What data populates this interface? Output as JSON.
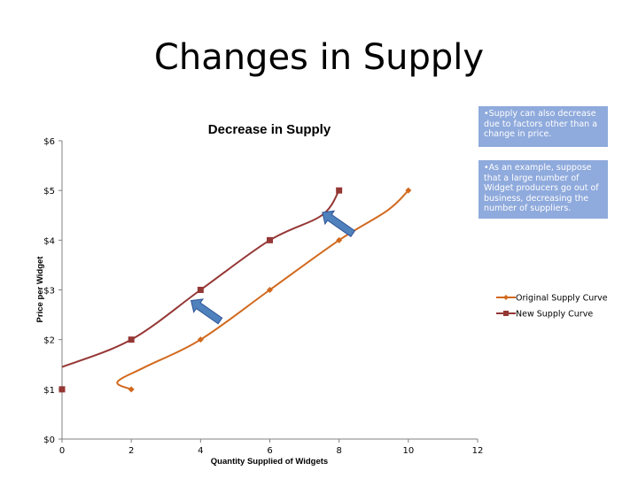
{
  "slide": {
    "title": "Changes in Supply",
    "notes": [
      "•Supply can also decrease due to factors other than a change in price.",
      "•As an example, suppose that a large number of Widget producers go out of business, decreasing the number of suppliers."
    ]
  },
  "colors": {
    "original": "#d2691e",
    "new": "#953735",
    "arrow": "#4f81bd",
    "note_bg": "#8faadc"
  },
  "chart_data": {
    "type": "line",
    "title": "Decrease in Supply",
    "xlabel": "Quantity Supplied of Widgets",
    "ylabel": "Price per Widget",
    "xlim": [
      0,
      12
    ],
    "ylim": [
      0,
      6
    ],
    "x_ticks": [
      "0",
      "2",
      "4",
      "6",
      "8",
      "10",
      "12"
    ],
    "y_ticks": [
      "$0",
      "$1",
      "$2",
      "$3",
      "$4",
      "$5",
      "$6"
    ],
    "legend_position": "right",
    "grid": false,
    "series": [
      {
        "name": "Original Supply Curve",
        "marker": "diamond",
        "points": [
          [
            2,
            1
          ],
          [
            4,
            2
          ],
          [
            6,
            3
          ],
          [
            8,
            4
          ],
          [
            10,
            5
          ]
        ]
      },
      {
        "name": "New Supply Curve",
        "marker": "square",
        "points": [
          [
            0,
            1
          ],
          [
            2,
            2
          ],
          [
            4,
            3
          ],
          [
            6,
            4
          ],
          [
            8,
            5
          ]
        ]
      }
    ],
    "annotations": [
      "arrow pointing up-left from original toward new curve (two arrows)"
    ]
  }
}
